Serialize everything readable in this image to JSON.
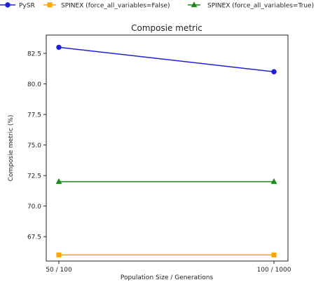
{
  "chart_data": {
    "type": "line",
    "title": "Composie metric",
    "xlabel": "Population Size / Generations",
    "ylabel": "Composie metric (%)",
    "categories": [
      "50 / 100",
      "100 / 1000"
    ],
    "ylim": [
      65.5,
      84.0
    ],
    "yticks": [
      67.5,
      70.0,
      72.5,
      75.0,
      77.5,
      80.0,
      82.5
    ],
    "ytick_labels": [
      "67.5",
      "70.0",
      "72.5",
      "75.0",
      "77.5",
      "80.0",
      "82.5"
    ],
    "grid": false,
    "legend_position": "top",
    "series": [
      {
        "name": "PySR",
        "values": [
          83.0,
          81.0
        ],
        "color": "#1f1fdf",
        "marker": "circle"
      },
      {
        "name": "SPINEX (force_all_variables=False)",
        "values": [
          66.0,
          66.0
        ],
        "color": "#ffa500",
        "marker": "square"
      },
      {
        "name": "SPINEX (force_all_variables=True)",
        "values": [
          72.0,
          72.0
        ],
        "color": "#1a8a1a",
        "marker": "triangle"
      }
    ]
  }
}
